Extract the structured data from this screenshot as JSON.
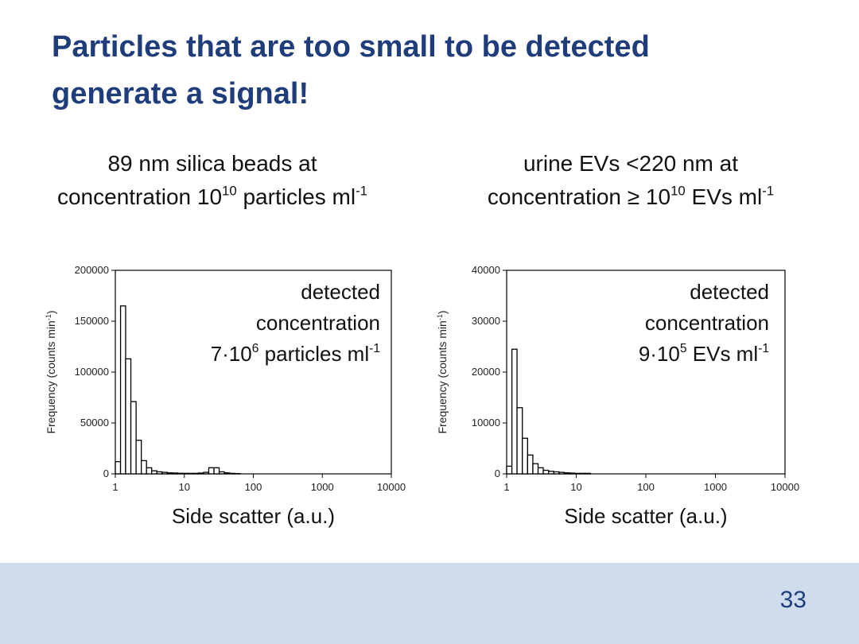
{
  "slide": {
    "title": [
      "Particles that are too small to be detected",
      "generate a signal!"
    ],
    "page_number": 33
  },
  "chart_data": [
    {
      "type": "histogram",
      "caption": [
        [
          {
            "text": "89 nm silica beads at"
          }
        ],
        [
          {
            "text": "concentration 10"
          },
          {
            "sup": "10"
          },
          {
            "text": " particles ml"
          },
          {
            "sup": "-1"
          }
        ]
      ],
      "annotation": [
        [
          {
            "text": "detected"
          }
        ],
        [
          {
            "text": "concentration"
          }
        ],
        [
          {
            "text": "7·10"
          },
          {
            "sup": "6"
          },
          {
            "text": " particles ml"
          },
          {
            "sup": "-1"
          }
        ]
      ],
      "x_label": "Side scatter (a.u.)",
      "y_label": [
        {
          "text": "Frequency (counts min"
        },
        {
          "sup": "-1"
        },
        {
          "text": ")"
        }
      ],
      "log_x": true,
      "xlim": [
        1,
        10000
      ],
      "xticks": [
        1,
        10,
        100,
        1000,
        10000
      ],
      "ylim": [
        0,
        200000
      ],
      "yticks": [
        0,
        50000,
        100000,
        150000,
        200000
      ],
      "color": "#ffffff",
      "bins": [
        1,
        1.19,
        1.41,
        1.68,
        2,
        2.38,
        2.83,
        3.36,
        4,
        4.76,
        5.66,
        6.73,
        8,
        9.51,
        11.3,
        13.5,
        16,
        19,
        22.6,
        26.9,
        32,
        38,
        45.3,
        53.8,
        64
      ],
      "values": [
        12000,
        165000,
        113000,
        71000,
        33000,
        13000,
        6000,
        3000,
        2000,
        1500,
        1000,
        800,
        600,
        500,
        500,
        500,
        800,
        1500,
        6000,
        6000,
        2000,
        1000,
        500,
        300
      ]
    },
    {
      "type": "histogram",
      "caption": [
        [
          {
            "text": "urine EVs <220 nm at"
          }
        ],
        [
          {
            "text": "concentration ≥ 10"
          },
          {
            "sup": "10"
          },
          {
            "text": " EVs ml"
          },
          {
            "sup": "-1"
          }
        ]
      ],
      "annotation": [
        [
          {
            "text": "detected"
          }
        ],
        [
          {
            "text": "concentration"
          }
        ],
        [
          {
            "text": "9·10"
          },
          {
            "sup": "5"
          },
          {
            "text": " EVs ml"
          },
          {
            "sup": "-1"
          }
        ]
      ],
      "x_label": "Side scatter (a.u.)",
      "y_label": [
        {
          "text": "Frequency (counts min"
        },
        {
          "sup": "-1"
        },
        {
          "text": ")"
        }
      ],
      "log_x": true,
      "xlim": [
        1,
        10000
      ],
      "xticks": [
        1,
        10,
        100,
        1000,
        10000
      ],
      "ylim": [
        0,
        40000
      ],
      "yticks": [
        0,
        10000,
        20000,
        30000,
        40000
      ],
      "color": "#ffffff",
      "bins": [
        1,
        1.19,
        1.41,
        1.68,
        2,
        2.38,
        2.83,
        3.36,
        4,
        4.76,
        5.66,
        6.73,
        8,
        9.51,
        11.3,
        13.5,
        16
      ],
      "values": [
        1500,
        24500,
        13000,
        7000,
        3700,
        2000,
        1200,
        700,
        500,
        400,
        300,
        200,
        150,
        100,
        100,
        100
      ]
    }
  ]
}
